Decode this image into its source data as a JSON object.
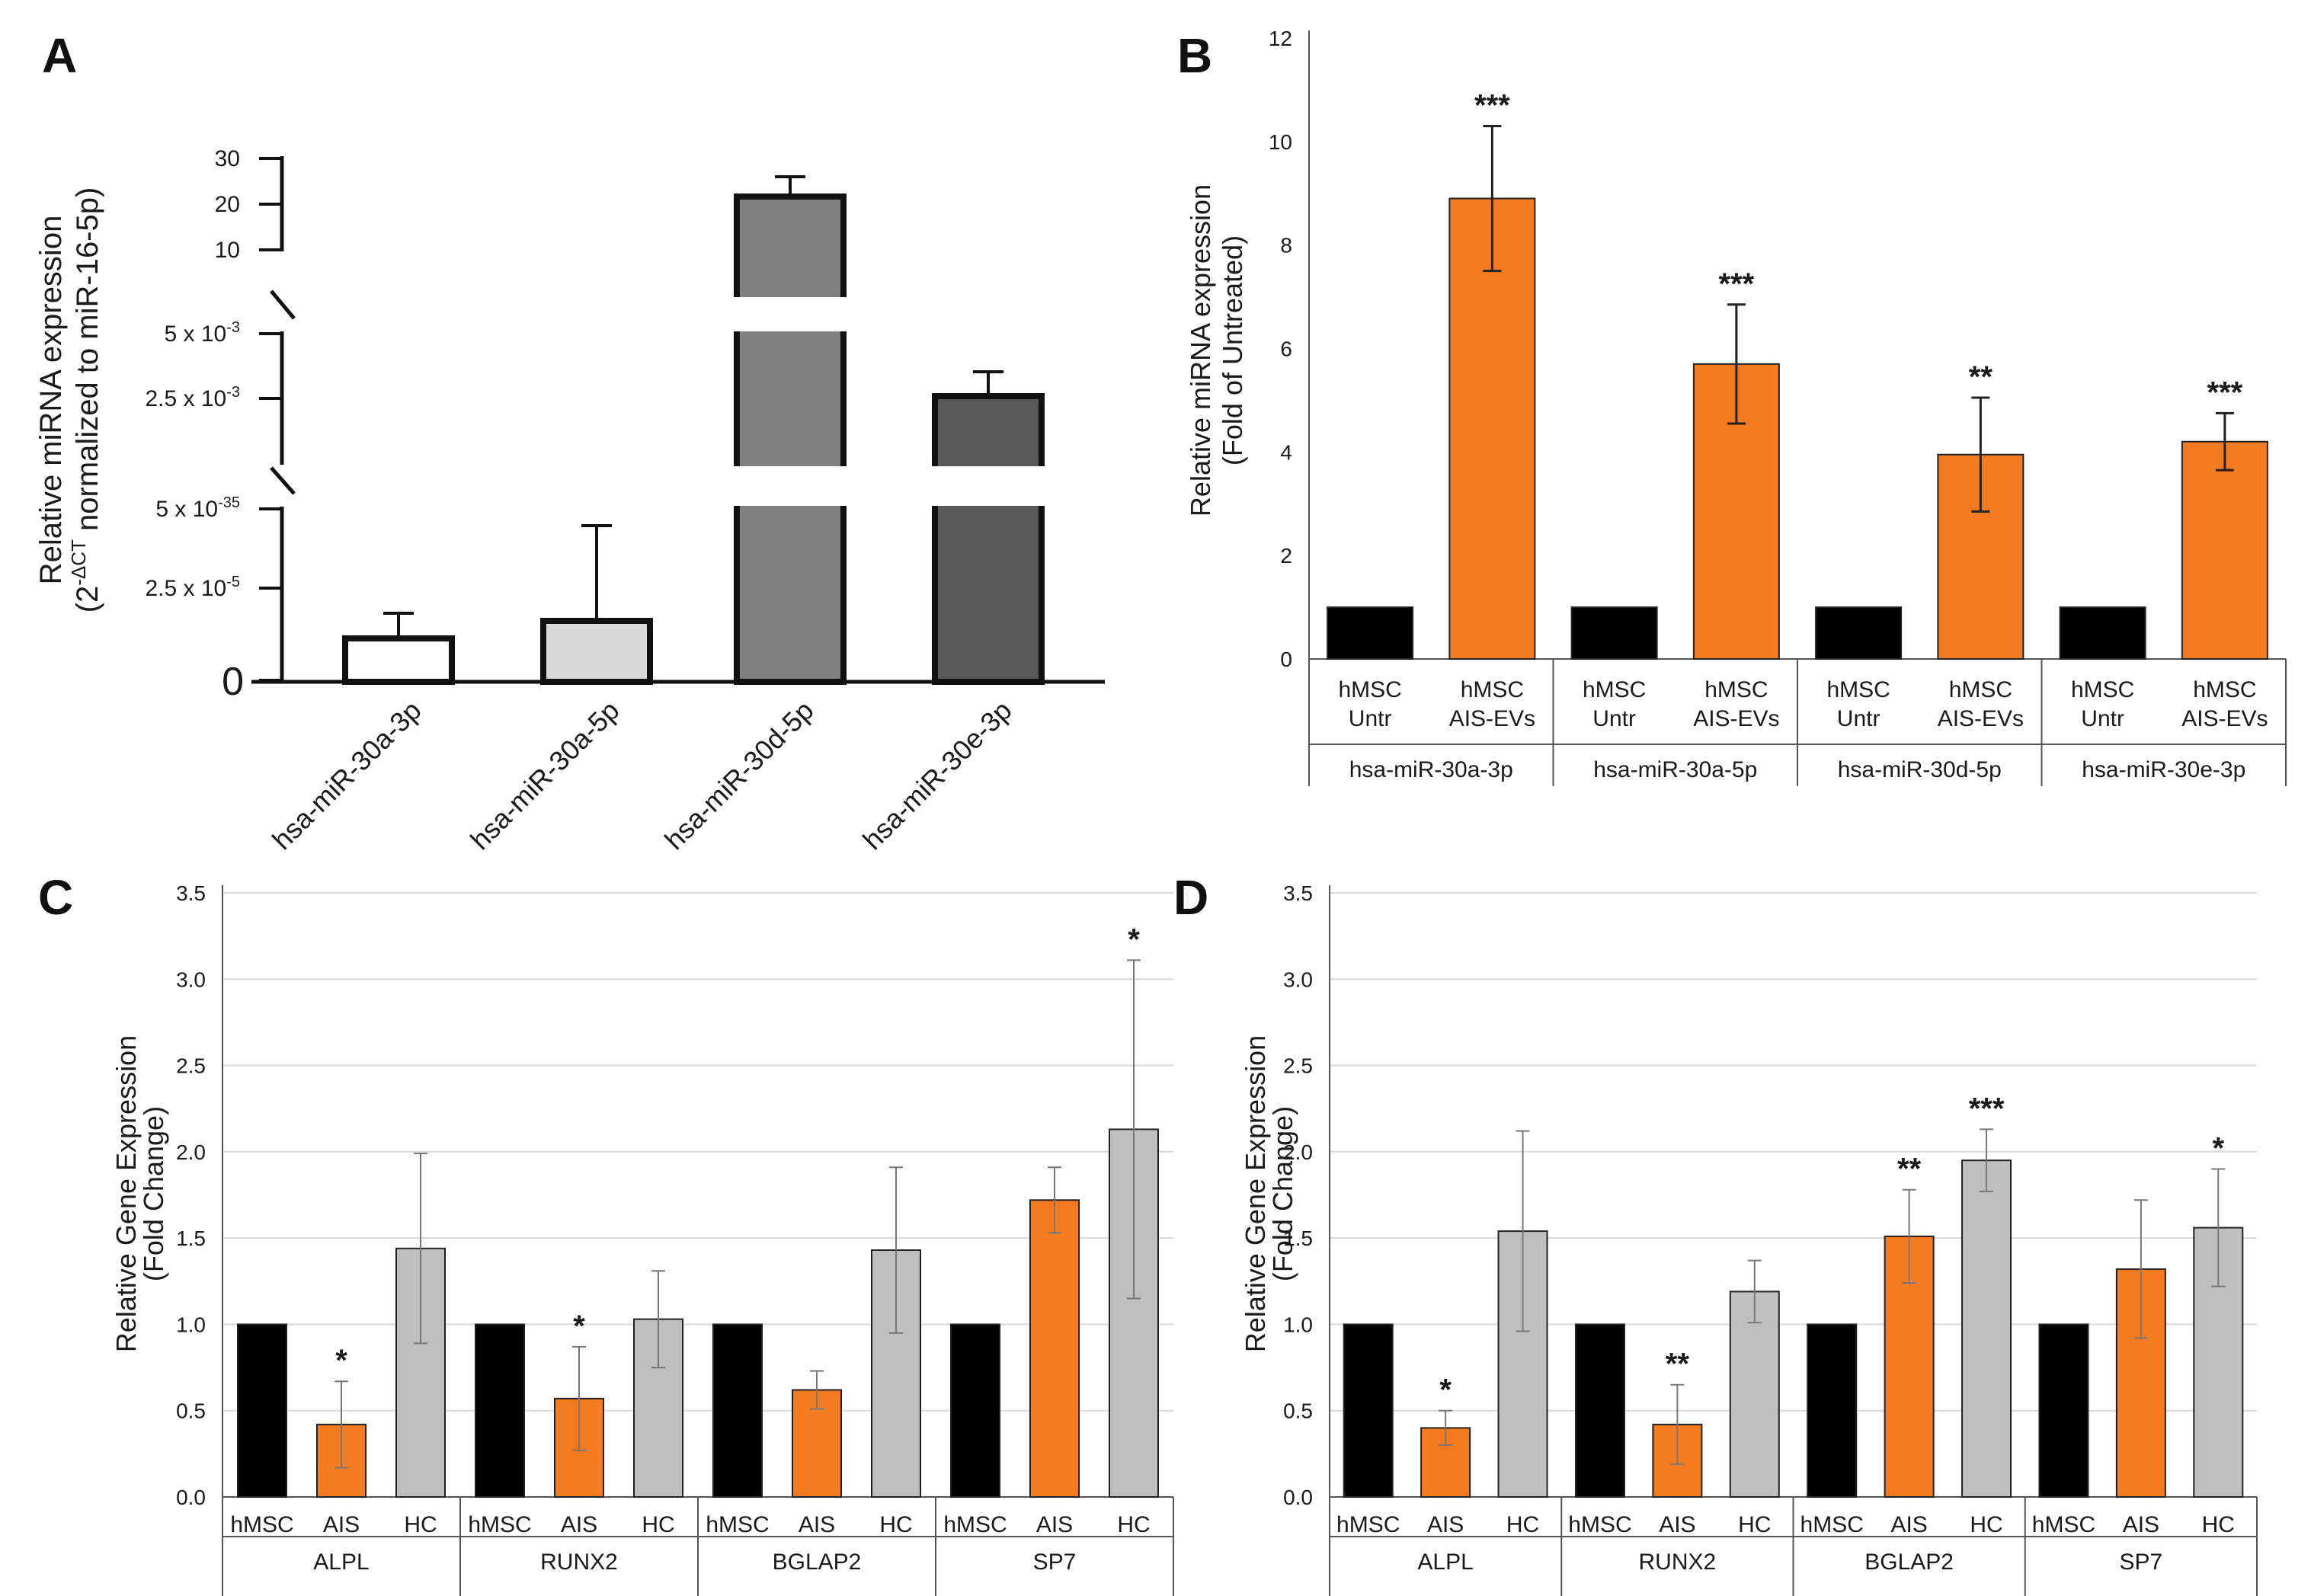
{
  "chart_data": [
    {
      "panel": "A",
      "type": "bar",
      "title": "",
      "ylabel_line1": "Relative miRNA  expression",
      "ylabel_line2_prefix": "(2",
      "ylabel_line2_sup": "-ΔCT",
      "ylabel_line2_suffix": " normalized to miR-16-5p)",
      "axis_break": true,
      "y_ticks_upper": [
        "30",
        "20",
        "10"
      ],
      "y_ticks_middle": [
        {
          "base": "5 x 10",
          "exp": "-3"
        },
        {
          "base": "2.5 x 10",
          "exp": "-3"
        }
      ],
      "y_ticks_lower": [
        {
          "base": "5 x 10",
          "exp": "-35"
        },
        {
          "base": "2.5 x 10",
          "exp": "-5"
        }
      ],
      "y_zero": "0",
      "categories": [
        "hsa-miR-30a-3p",
        "hsa-miR-30a-5p",
        "hsa-miR-30d-5p",
        "hsa-miR-30e-3p"
      ],
      "values_display": [
        "1.3 x 10^-5",
        "1.8 x 10^-5",
        "22",
        "2.5 x 10^-3"
      ],
      "fill_colors": [
        "#ffffff",
        "#d9d9d9",
        "#808080",
        "#595959"
      ]
    },
    {
      "panel": "B",
      "type": "bar",
      "ylabel_line1": "Relative  miRNA expression",
      "ylabel_line2": "(Fold of Untreated)",
      "ylim": [
        0,
        12
      ],
      "yticks": [
        "0",
        "2",
        "4",
        "6",
        "8",
        "10",
        "12"
      ],
      "groups": [
        "hsa-miR-30a-3p",
        "hsa-miR-30a-5p",
        "hsa-miR-30d-5p",
        "hsa-miR-30e-3p"
      ],
      "sublabels": [
        [
          "hMSC",
          "Untr"
        ],
        [
          "hMSC",
          "AIS-EVs"
        ]
      ],
      "series": [
        {
          "name": "hMSC Untr",
          "color": "#000000",
          "values": [
            1,
            1,
            1,
            1
          ],
          "errors": [
            0,
            0,
            0,
            0
          ]
        },
        {
          "name": "hMSC AIS-EVs",
          "color": "#f47b20",
          "values": [
            8.9,
            5.7,
            3.95,
            4.2
          ],
          "errors": [
            1.4,
            1.15,
            1.1,
            0.55
          ]
        }
      ],
      "significance": [
        "***",
        "***",
        "**",
        "***"
      ]
    },
    {
      "panel": "C",
      "type": "bar",
      "ylabel_line1": "Relative Gene Expression",
      "ylabel_line2": "(Fold Change)",
      "ylim": [
        0,
        3.5
      ],
      "yticks": [
        "0.0",
        "0.5",
        "1.0",
        "1.5",
        "2.0",
        "2.5",
        "3.0",
        "3.5"
      ],
      "groups": [
        "ALPL",
        "RUNX2",
        "BGLAP2",
        "SP7"
      ],
      "sublabels": [
        "hMSC",
        "AIS",
        "HC"
      ],
      "series": [
        {
          "name": "hMSC",
          "color": "#000000",
          "values": [
            1.0,
            1.0,
            1.0,
            1.0
          ],
          "errors": [
            0.01,
            0.01,
            0.01,
            0.01
          ]
        },
        {
          "name": "AIS",
          "color": "#f47b20",
          "values": [
            0.42,
            0.57,
            0.62,
            1.72
          ],
          "errors": [
            0.25,
            0.3,
            0.11,
            0.19
          ]
        },
        {
          "name": "HC",
          "color": "#bfbfbf",
          "values": [
            1.44,
            1.03,
            1.43,
            2.13
          ],
          "errors": [
            0.55,
            0.28,
            0.48,
            0.98
          ]
        }
      ],
      "significance": [
        {
          "group": 0,
          "series": 1,
          "label": "*"
        },
        {
          "group": 1,
          "series": 1,
          "label": "*"
        },
        {
          "group": 3,
          "series": 2,
          "label": "*"
        }
      ]
    },
    {
      "panel": "D",
      "type": "bar",
      "ylabel_line1": "Relative Gene Expression",
      "ylabel_line2": "(Fold Change)",
      "ylim": [
        0,
        3.5
      ],
      "yticks": [
        "0.0",
        "0.5",
        "1.0",
        "1.5",
        "2.0",
        "2.5",
        "3.0",
        "3.5"
      ],
      "groups": [
        "ALPL",
        "RUNX2",
        "BGLAP2",
        "SP7"
      ],
      "sublabels": [
        "hMSC",
        "AIS",
        "HC"
      ],
      "series": [
        {
          "name": "hMSC",
          "color": "#000000",
          "values": [
            1.0,
            1.0,
            1.0,
            1.0
          ],
          "errors": [
            0.01,
            0.01,
            0.01,
            0.01
          ]
        },
        {
          "name": "AIS",
          "color": "#f47b20",
          "values": [
            0.4,
            0.42,
            1.51,
            1.32
          ],
          "errors": [
            0.1,
            0.23,
            0.27,
            0.4
          ]
        },
        {
          "name": "HC",
          "color": "#bfbfbf",
          "values": [
            1.54,
            1.19,
            1.95,
            1.56
          ],
          "errors": [
            0.58,
            0.18,
            0.18,
            0.34
          ]
        }
      ],
      "significance": [
        {
          "group": 0,
          "series": 1,
          "label": "*"
        },
        {
          "group": 1,
          "series": 1,
          "label": "**"
        },
        {
          "group": 2,
          "series": 1,
          "label": "**"
        },
        {
          "group": 2,
          "series": 2,
          "label": "***"
        },
        {
          "group": 3,
          "series": 2,
          "label": "*"
        }
      ]
    }
  ]
}
